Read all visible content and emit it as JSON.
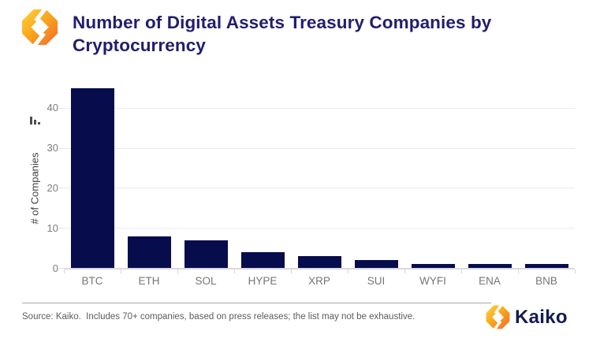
{
  "header": {
    "title_lines": {
      "0": "Number of Digital Assets Treasury Companies by",
      "1": "Cryptocurrency"
    }
  },
  "chart_data": {
    "type": "bar",
    "title": "Number of Digital Assets Treasury Companies by Cryptocurrency",
    "categories": [
      "BTC",
      "ETH",
      "SOL",
      "HYPE",
      "XRP",
      "SUI",
      "WYFI",
      "ENA",
      "BNB"
    ],
    "values": [
      45,
      8,
      7,
      4,
      3,
      2,
      1,
      1,
      1
    ],
    "xlabel": "",
    "ylabel": "# of Companies",
    "yticks": [
      0,
      10,
      20,
      30,
      40
    ],
    "ylim": [
      0,
      46
    ],
    "grid": true,
    "legend": false,
    "bar_color": "#070c4c",
    "grid_color": "#ebebf0",
    "tick_label_color": "#7d7d7d"
  },
  "footer": {
    "source": "Source: Kaiko.  Includes 70+ companies, based on press releases; the list may not be exhaustive.",
    "brand": "Kaiko"
  },
  "colors": {
    "title": "#221d6e",
    "brand_navy": "#141b52",
    "logo_orange_light": "#FFD339",
    "logo_orange_mid": "#FAA21E",
    "logo_orange_dark": "#F1692C"
  }
}
